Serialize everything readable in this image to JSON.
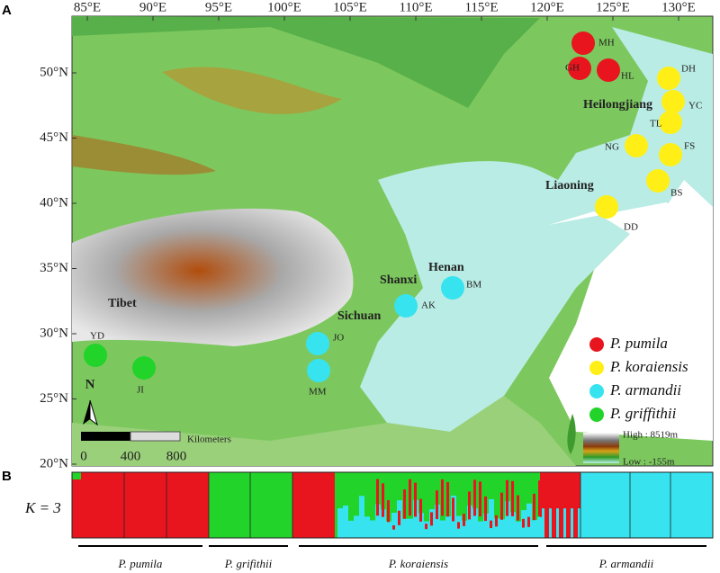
{
  "panel_labels": [
    "A",
    "B"
  ],
  "map": {
    "longitude_labels": [
      "85°E",
      "90°E",
      "95°E",
      "100°E",
      "105°E",
      "110°E",
      "115°E",
      "120°E",
      "125°E",
      "130°E"
    ],
    "latitude_labels": [
      "50°N",
      "45°N",
      "40°N",
      "35°N",
      "30°N",
      "25°N",
      "20°N"
    ],
    "regions": [
      "Tibet",
      "Sichuan",
      "Shanxi",
      "Henan",
      "Liaoning",
      "Heilongjiang"
    ],
    "sites": [
      "MH",
      "GH",
      "HL",
      "DH",
      "YC",
      "TL",
      "NG",
      "FS",
      "BS",
      "DD",
      "BM",
      "AK",
      "JO",
      "MM",
      "YD",
      "JI"
    ]
  },
  "legend": [
    "P. pumila",
    "P. koraiensis",
    "P. armandii",
    "P. griffithii"
  ],
  "north": "N",
  "scale_bar": {
    "ticks": [
      "0",
      "400",
      "800"
    ],
    "unit": "Kilometers"
  },
  "elevation": {
    "high": "High : 8519m",
    "low": "Low : -155m"
  },
  "structure": {
    "k_label": "K = 3",
    "groups": [
      "P. pumila",
      "P. grifithii",
      "P. koraiensis",
      "P. armandii"
    ]
  }
}
